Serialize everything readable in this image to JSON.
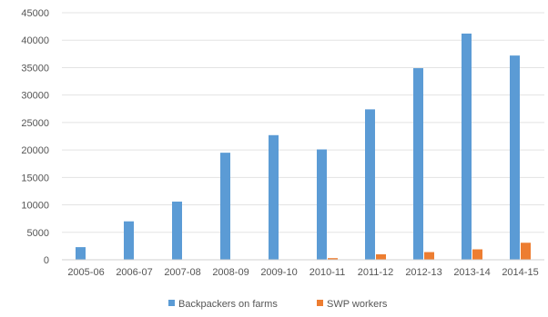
{
  "chart_data": {
    "type": "bar",
    "title": "",
    "xlabel": "",
    "ylabel": "",
    "categories": [
      "2005-06",
      "2006-07",
      "2007-08",
      "2008-09",
      "2009-10",
      "2010-11",
      "2011-12",
      "2012-13",
      "2013-14",
      "2014-15"
    ],
    "series": [
      {
        "name": "Backpackers on farms",
        "color": "#5b9bd5",
        "values": [
          2300,
          7000,
          10600,
          19500,
          22700,
          20100,
          27400,
          34900,
          41200,
          37200
        ]
      },
      {
        "name": "SWP workers",
        "color": "#ed7d31",
        "values": [
          0,
          0,
          0,
          0,
          0,
          300,
          1000,
          1400,
          1900,
          3100
        ]
      }
    ],
    "yticks": [
      "0",
      "5000",
      "10000",
      "15000",
      "20000",
      "25000",
      "30000",
      "35000",
      "40000",
      "45000"
    ],
    "ylim": [
      0,
      45000
    ],
    "grid": true,
    "legend": "bottom-center"
  }
}
